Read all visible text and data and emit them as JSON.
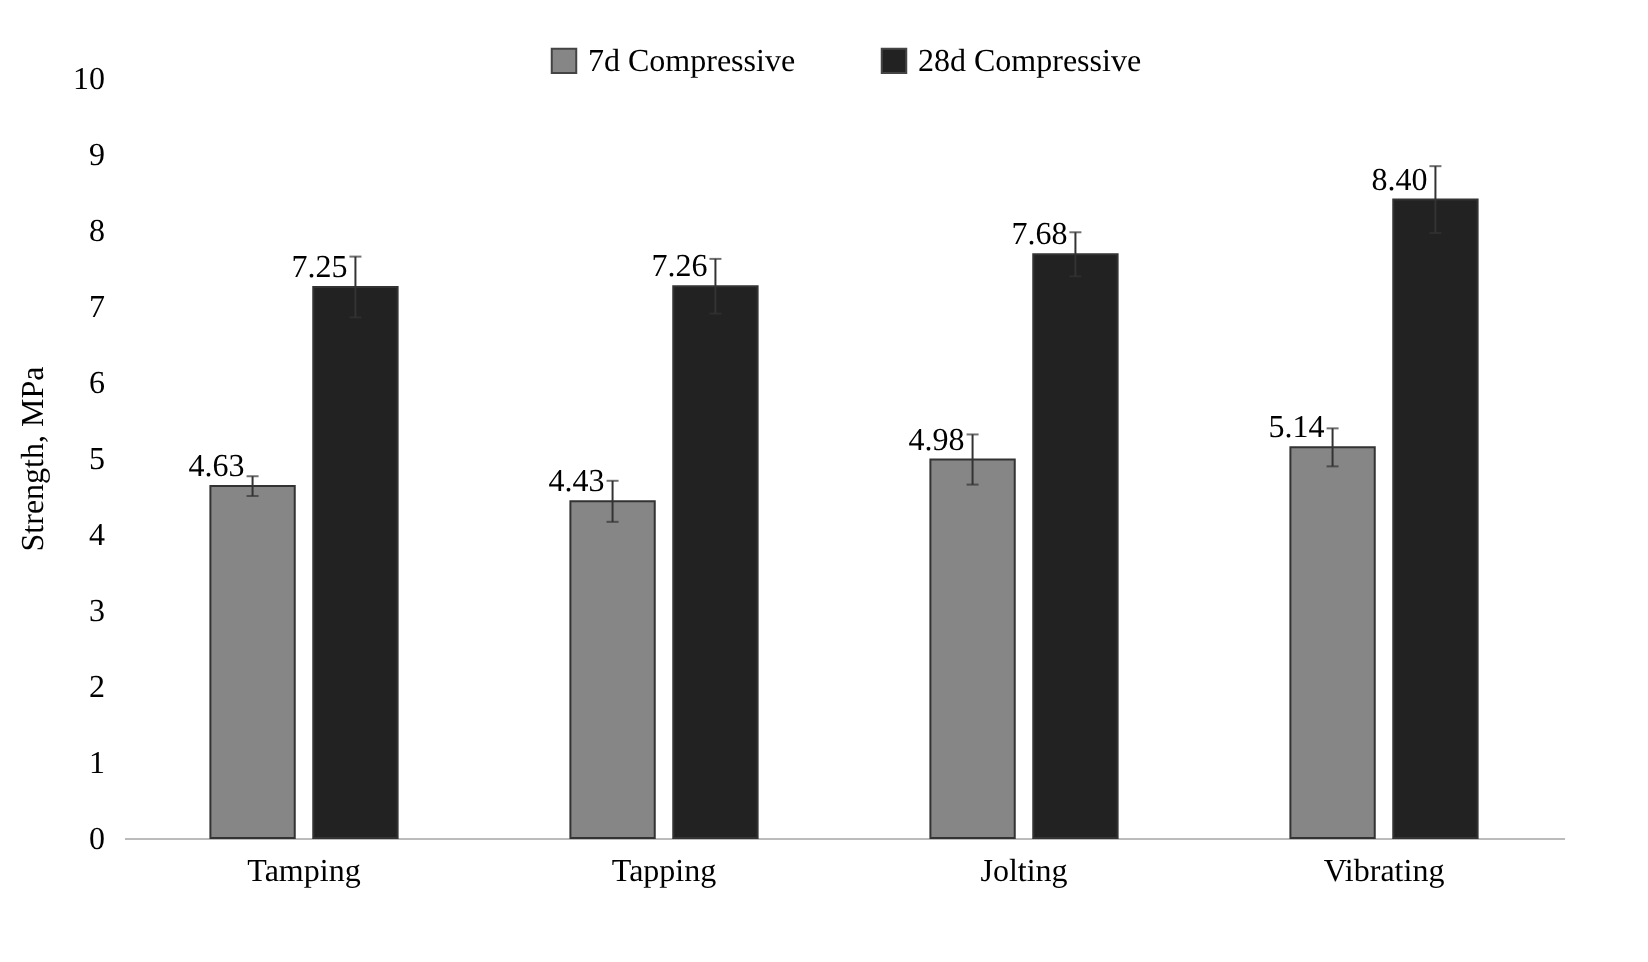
{
  "chart_data": {
    "type": "bar",
    "ylabel": "Strength, MPa",
    "categories": [
      "Tamping",
      "Tapping",
      "Jolting",
      "Vibrating"
    ],
    "series": [
      {
        "name": "7d Compressive",
        "color": "#868686",
        "values": [
          4.63,
          4.43,
          4.98,
          5.14
        ],
        "errors": [
          0.13,
          0.27,
          0.33,
          0.25
        ],
        "value_labels": [
          "4.63",
          "4.43",
          "4.98",
          "5.14"
        ]
      },
      {
        "name": "28d Compressive",
        "color": "#222222",
        "values": [
          7.25,
          7.26,
          7.68,
          8.4
        ],
        "errors": [
          0.4,
          0.36,
          0.29,
          0.44
        ],
        "value_labels": [
          "7.25",
          "7.26",
          "7.68",
          "8.40"
        ]
      }
    ],
    "ylim": [
      0,
      10
    ],
    "yticks": [
      0,
      1,
      2,
      3,
      4,
      5,
      6,
      7,
      8,
      9,
      10
    ],
    "grid": false,
    "legend": "top"
  }
}
